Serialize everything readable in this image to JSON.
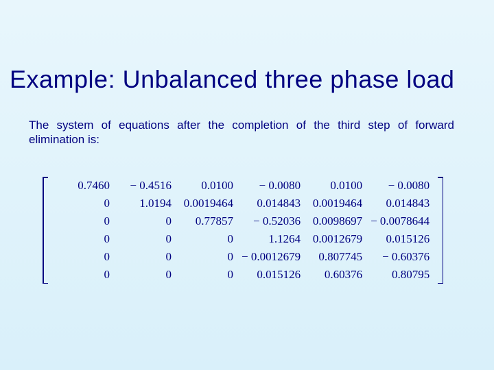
{
  "title": "Example: Unbalanced three phase load",
  "body": "The system of equations after the completion of the third step of forward elimination is:",
  "matrix": {
    "rows": [
      [
        "0.7460",
        "− 0.4516",
        "0.0100",
        "− 0.0080",
        "0.0100",
        "− 0.0080"
      ],
      [
        "0",
        "1.0194",
        "0.0019464",
        "0.014843",
        "0.0019464",
        "0.014843"
      ],
      [
        "0",
        "0",
        "0.77857",
        "− 0.52036",
        "0.0098697",
        "− 0.0078644"
      ],
      [
        "0",
        "0",
        "0",
        "1.1264",
        "0.0012679",
        "0.015126"
      ],
      [
        "0",
        "0",
        "0",
        "− 0.0012679",
        "0.807745",
        "− 0.60376"
      ],
      [
        "0",
        "0",
        "0",
        "0.015126",
        "0.60376",
        "0.80795"
      ]
    ],
    "text_color": "#000080",
    "font_family": "Times New Roman",
    "cell_fontsize": 17
  },
  "colors": {
    "title": "#000080",
    "body": "#000080",
    "bg_top": "#e8f6fc",
    "bg_bottom": "#d9f0fa"
  },
  "fonts": {
    "title_size": 36,
    "body_size": 17
  }
}
